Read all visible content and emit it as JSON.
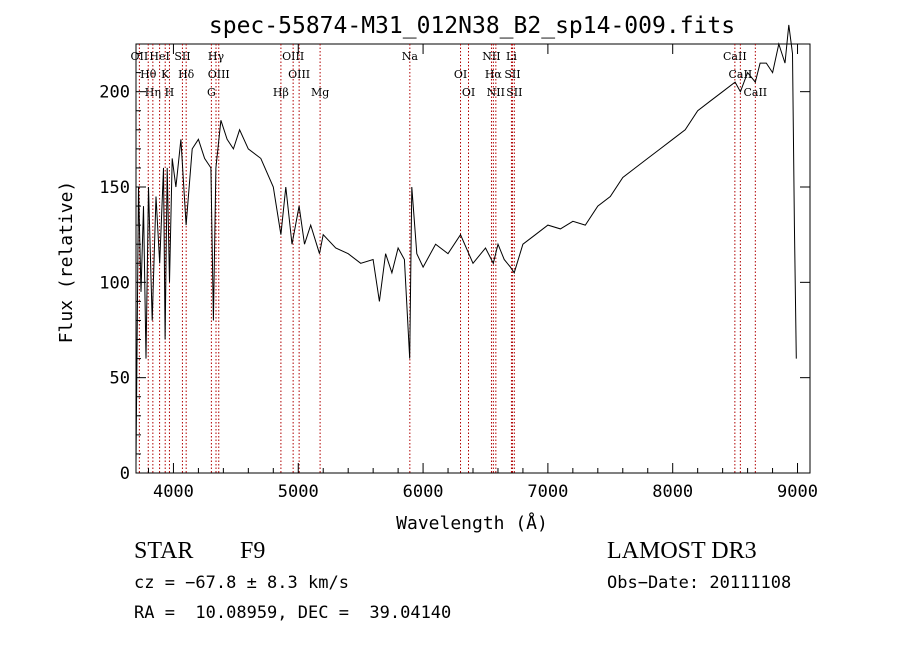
{
  "chart_data": {
    "type": "line",
    "title": "spec-55874-M31_012N38_B2_sp14-009.fits",
    "xlabel": "Wavelength (Å)",
    "ylabel": "Flux (relative)",
    "xlim": [
      3700,
      9100
    ],
    "ylim": [
      0,
      225
    ],
    "xticks": [
      4000,
      5000,
      6000,
      7000,
      8000,
      9000
    ],
    "yticks": [
      0,
      50,
      100,
      150,
      200
    ],
    "grid": false,
    "series": [
      {
        "name": "spectrum",
        "x": [
          3700,
          3720,
          3740,
          3760,
          3780,
          3800,
          3830,
          3860,
          3890,
          3920,
          3933,
          3950,
          3968,
          3990,
          4020,
          4060,
          4101,
          4150,
          4200,
          4250,
          4300,
          4320,
          4340,
          4380,
          4430,
          4480,
          4530,
          4600,
          4700,
          4800,
          4861,
          4900,
          4950,
          5007,
          5050,
          5100,
          5170,
          5200,
          5300,
          5400,
          5500,
          5600,
          5650,
          5700,
          5750,
          5800,
          5850,
          5893,
          5910,
          5950,
          6000,
          6100,
          6200,
          6300,
          6400,
          6500,
          6563,
          6600,
          6650,
          6700,
          6730,
          6800,
          6900,
          7000,
          7100,
          7200,
          7300,
          7400,
          7500,
          7600,
          7700,
          7800,
          7900,
          8000,
          8100,
          8200,
          8300,
          8400,
          8500,
          8542,
          8600,
          8662,
          8700,
          8750,
          8800,
          8850,
          8900,
          8930,
          8960,
          8975,
          8990
        ],
        "values": [
          5,
          150,
          95,
          140,
          60,
          150,
          80,
          145,
          110,
          160,
          70,
          160,
          100,
          165,
          150,
          175,
          130,
          170,
          175,
          165,
          160,
          80,
          160,
          185,
          175,
          170,
          180,
          170,
          165,
          150,
          125,
          150,
          120,
          140,
          120,
          130,
          115,
          125,
          118,
          115,
          110,
          112,
          90,
          115,
          105,
          118,
          112,
          60,
          150,
          115,
          108,
          120,
          115,
          125,
          110,
          118,
          110,
          120,
          112,
          108,
          105,
          120,
          125,
          130,
          128,
          132,
          130,
          140,
          145,
          155,
          160,
          165,
          170,
          175,
          180,
          190,
          195,
          200,
          205,
          200,
          210,
          205,
          215,
          215,
          210,
          225,
          215,
          235,
          220,
          130,
          60
        ]
      }
    ],
    "lines": [
      {
        "name": "OII",
        "x": 3727
      },
      {
        "name": "Hθ",
        "x": 3798
      },
      {
        "name": "Hη",
        "x": 3835
      },
      {
        "name": "HeI",
        "x": 3889
      },
      {
        "name": "K",
        "x": 3934
      },
      {
        "name": "H",
        "x": 3968
      },
      {
        "name": "SII",
        "x": 4072
      },
      {
        "name": "Hδ",
        "x": 4102
      },
      {
        "name": "G",
        "x": 4304
      },
      {
        "name": "Hγ",
        "x": 4341
      },
      {
        "name": "OIII",
        "x": 4363
      },
      {
        "name": "Hβ",
        "x": 4861
      },
      {
        "name": "OIII",
        "x": 4959
      },
      {
        "name": "OIII",
        "x": 5007
      },
      {
        "name": "Mg",
        "x": 5175
      },
      {
        "name": "Na",
        "x": 5894
      },
      {
        "name": "OI",
        "x": 6300
      },
      {
        "name": "OI",
        "x": 6364
      },
      {
        "name": "NII",
        "x": 6548
      },
      {
        "name": "Hα",
        "x": 6563
      },
      {
        "name": "NII",
        "x": 6583
      },
      {
        "name": "Li",
        "x": 6708
      },
      {
        "name": "SII",
        "x": 6716
      },
      {
        "name": "SII",
        "x": 6731
      },
      {
        "name": "CaII",
        "x": 8498
      },
      {
        "name": "CaII",
        "x": 8542
      },
      {
        "name": "CaII",
        "x": 8662
      }
    ]
  },
  "info": {
    "class": "STAR",
    "subclass": "F9",
    "survey": "LAMOST DR3",
    "cz": "cz = −67.8 ± 8.3 km/s",
    "obs_date": "Obs−Date: 20111108",
    "coords": "RA =  10.08959, DEC =  39.04140"
  }
}
